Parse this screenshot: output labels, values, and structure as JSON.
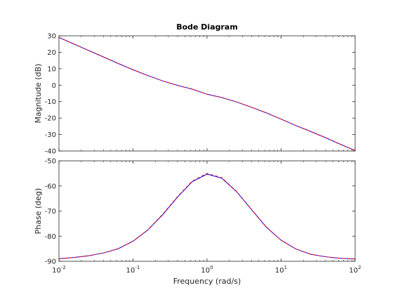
{
  "chart_data": {
    "type": "line",
    "title": "Bode Diagram",
    "xlabel": "Frequency  (rad/s)",
    "xscale": "log",
    "xlim": [
      0.01,
      100
    ],
    "x_ticks": [
      0.01,
      0.1,
      1,
      10,
      100
    ],
    "x_tick_labels": [
      {
        "base": "10",
        "exp": "-2"
      },
      {
        "base": "10",
        "exp": "-1"
      },
      {
        "base": "10",
        "exp": "0"
      },
      {
        "base": "10",
        "exp": "1"
      },
      {
        "base": "10",
        "exp": "2"
      }
    ],
    "panels": [
      {
        "ylabel": "Magnitude (dB)",
        "ylim": [
          -40,
          30
        ],
        "y_ticks": [
          30,
          20,
          10,
          0,
          -10,
          -20,
          -30,
          -40
        ],
        "y_tick_labels": [
          "30",
          "20",
          "10",
          "0",
          "-10",
          "-20",
          "-30",
          "-40"
        ],
        "series": [
          {
            "color": "#0000ff",
            "style": "solid",
            "x": [
              0.01,
              0.0158,
              0.0251,
              0.0398,
              0.0631,
              0.1,
              0.158,
              0.251,
              0.398,
              0.631,
              1,
              1.58,
              2.51,
              3.98,
              6.31,
              10,
              15.8,
              25.1,
              39.8,
              63.1,
              100
            ],
            "y": [
              29,
              25.1,
              21.1,
              17.2,
              13.2,
              9.4,
              5.9,
              2.6,
              -0.1,
              -2.4,
              -5.5,
              -7.5,
              -10.2,
              -13.4,
              -16.8,
              -20.6,
              -24.5,
              -28.1,
              -31.9,
              -35.9,
              -39.7
            ]
          },
          {
            "color": "#ff0000",
            "style": "dashed",
            "x": [
              0.01,
              0.0158,
              0.0251,
              0.0398,
              0.0631,
              0.1,
              0.158,
              0.251,
              0.398,
              0.631,
              1,
              1.58,
              2.51,
              3.98,
              6.31,
              10,
              15.8,
              25.1,
              39.8,
              63.1,
              100
            ],
            "y": [
              29,
              25.1,
              21.1,
              17.2,
              13.2,
              9.4,
              5.9,
              2.6,
              -0.1,
              -2.4,
              -5.5,
              -7.5,
              -10.2,
              -13.4,
              -16.8,
              -20.6,
              -24.5,
              -28.1,
              -31.9,
              -35.9,
              -39.7
            ]
          }
        ]
      },
      {
        "ylabel": "Phase (deg)",
        "ylim": [
          -90,
          -50
        ],
        "y_ticks": [
          -50,
          -60,
          -70,
          -80,
          -90
        ],
        "y_tick_labels": [
          "-50",
          "-60",
          "-70",
          "-80",
          "-90"
        ],
        "series": [
          {
            "color": "#0000ff",
            "style": "solid",
            "x": [
              0.01,
              0.0158,
              0.0251,
              0.0398,
              0.0631,
              0.1,
              0.158,
              0.251,
              0.398,
              0.631,
              1,
              1.58,
              2.51,
              3.98,
              6.31,
              10,
              15.8,
              25.1,
              39.8,
              63.1,
              100
            ],
            "y": [
              -89,
              -88.5,
              -87.8,
              -86.7,
              -85,
              -82,
              -77.6,
              -71.5,
              -64.5,
              -58.3,
              -55.3,
              -56.9,
              -62.3,
              -69.4,
              -76.4,
              -81.6,
              -85.1,
              -87.2,
              -88.2,
              -88.8,
              -89.1
            ]
          },
          {
            "color": "#ff0000",
            "style": "dashed",
            "x": [
              0.01,
              0.0158,
              0.0251,
              0.0398,
              0.0631,
              0.1,
              0.158,
              0.251,
              0.398,
              0.631,
              1,
              1.58,
              2.51,
              3.98,
              6.31,
              10,
              15.8,
              25.1,
              39.8,
              63.1,
              100
            ],
            "y": [
              -89,
              -88.5,
              -87.8,
              -86.7,
              -85,
              -82,
              -77.5,
              -71.3,
              -64.3,
              -58.1,
              -55,
              -56.7,
              -62.2,
              -69.3,
              -76.3,
              -81.6,
              -85.1,
              -87.2,
              -88.2,
              -88.8,
              -89.1
            ]
          }
        ]
      }
    ]
  }
}
